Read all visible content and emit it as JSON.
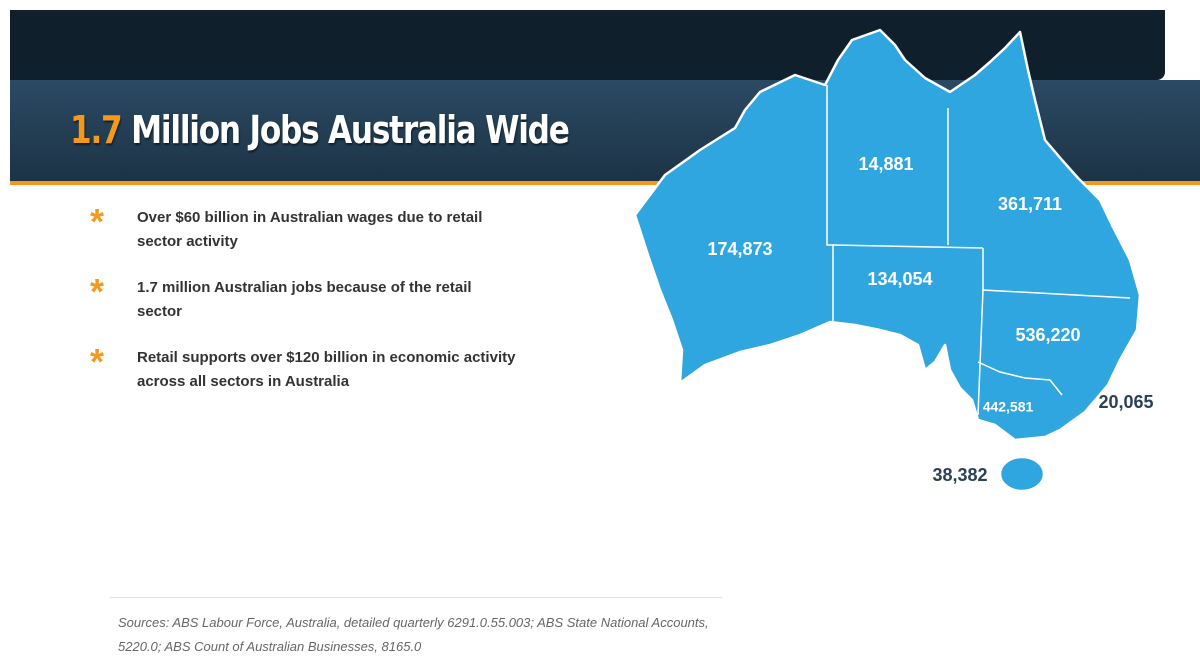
{
  "header": {
    "title_highlight": "1.7",
    "title_rest": "Million Jobs Australia Wide"
  },
  "bullets": [
    "Over $60 billion in Australian wages due to retail sector activity",
    "1.7 million Australian jobs because of the retail sector",
    "Retail supports over $120 billion in economic activity across all sectors in Australia"
  ],
  "map": {
    "regions": [
      {
        "label": "174,873"
      },
      {
        "label": "14,881"
      },
      {
        "label": "361,711"
      },
      {
        "label": "134,054"
      },
      {
        "label": "536,220"
      },
      {
        "label": "442,581"
      },
      {
        "label": "20,065"
      },
      {
        "label": "38,382"
      }
    ]
  },
  "sources": "Sources: ABS Labour Force, Australia, detailed quarterly 6291.0.55.003; ABS State National Accounts, 5220.0; ABS Count of Australian Businesses, 8165.0"
}
